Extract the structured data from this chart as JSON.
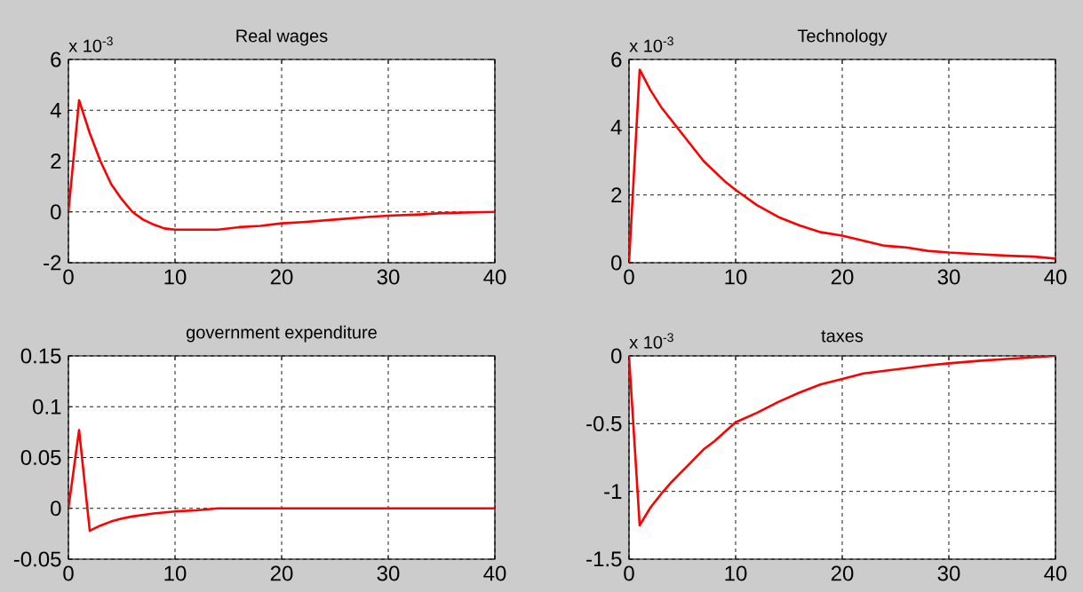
{
  "chart_data": [
    {
      "type": "line",
      "title": "Real wages",
      "annotations": [
        "x 10$^{-3}$"
      ],
      "color": "#ff0000",
      "grid": true,
      "xlim": [
        0,
        40
      ],
      "ylim": [
        -2,
        6
      ],
      "xticks": [
        0,
        10,
        20,
        30,
        40
      ],
      "yticks": [
        -2,
        0,
        2,
        4,
        6
      ],
      "x": [
        0,
        1,
        2,
        3,
        4,
        5,
        6,
        7,
        8,
        9,
        10,
        12,
        14,
        16,
        18,
        20,
        22,
        25,
        28,
        30,
        33,
        35,
        38,
        40
      ],
      "values": [
        0,
        4.4,
        3.1,
        2.0,
        1.1,
        0.5,
        0,
        -0.3,
        -0.5,
        -0.65,
        -0.7,
        -0.7,
        -0.7,
        -0.6,
        -0.55,
        -0.45,
        -0.4,
        -0.3,
        -0.2,
        -0.15,
        -0.1,
        -0.05,
        -0.02,
        0
      ]
    },
    {
      "type": "line",
      "title": "Technology",
      "annotations": [
        "x 10$^{-3}$"
      ],
      "color": "#ff0000",
      "grid": true,
      "xlim": [
        0,
        40
      ],
      "ylim": [
        0,
        6
      ],
      "xticks": [
        0,
        10,
        20,
        30,
        40
      ],
      "yticks": [
        0,
        2,
        4,
        6
      ],
      "x": [
        0,
        1,
        2,
        3,
        4,
        5,
        6,
        7,
        8,
        9,
        10,
        12,
        14,
        16,
        18,
        20,
        22,
        24,
        26,
        28,
        30,
        33,
        36,
        38,
        40
      ],
      "values": [
        0,
        5.7,
        5.1,
        4.6,
        4.2,
        3.8,
        3.4,
        3.0,
        2.7,
        2.4,
        2.15,
        1.7,
        1.35,
        1.1,
        0.9,
        0.8,
        0.65,
        0.5,
        0.45,
        0.35,
        0.3,
        0.25,
        0.2,
        0.18,
        0.12
      ]
    },
    {
      "type": "line",
      "title": "government expenditure",
      "color": "#ff0000",
      "grid": true,
      "xlim": [
        0,
        40
      ],
      "ylim": [
        -0.05,
        0.15
      ],
      "xticks": [
        0,
        10,
        20,
        30,
        40
      ],
      "yticks": [
        -0.05,
        0,
        0.05,
        0.1,
        0.15
      ],
      "x": [
        0,
        1,
        2,
        3,
        4,
        5,
        6,
        8,
        10,
        12,
        14,
        20,
        30,
        40
      ],
      "values": [
        0,
        0.077,
        -0.022,
        -0.017,
        -0.013,
        -0.01,
        -0.008,
        -0.005,
        -0.003,
        -0.002,
        0,
        0,
        0,
        0
      ]
    },
    {
      "type": "line",
      "title": "taxes",
      "annotations": [
        "x 10$^{-3}$"
      ],
      "color": "#ff0000",
      "grid": true,
      "xlim": [
        0,
        40
      ],
      "ylim": [
        -1.5,
        0
      ],
      "xticks": [
        0,
        10,
        20,
        30,
        40
      ],
      "yticks": [
        -1.5,
        -1,
        -0.5,
        0
      ],
      "x": [
        0,
        1,
        2,
        3,
        4,
        5,
        6,
        7,
        8,
        9,
        10,
        12,
        14,
        16,
        18,
        20,
        22,
        25,
        28,
        30,
        33,
        36,
        40
      ],
      "values": [
        0,
        -1.25,
        -1.12,
        -1.02,
        -0.93,
        -0.85,
        -0.77,
        -0.69,
        -0.63,
        -0.56,
        -0.49,
        -0.42,
        -0.34,
        -0.27,
        -0.21,
        -0.17,
        -0.13,
        -0.1,
        -0.07,
        -0.055,
        -0.035,
        -0.02,
        0
      ]
    }
  ]
}
